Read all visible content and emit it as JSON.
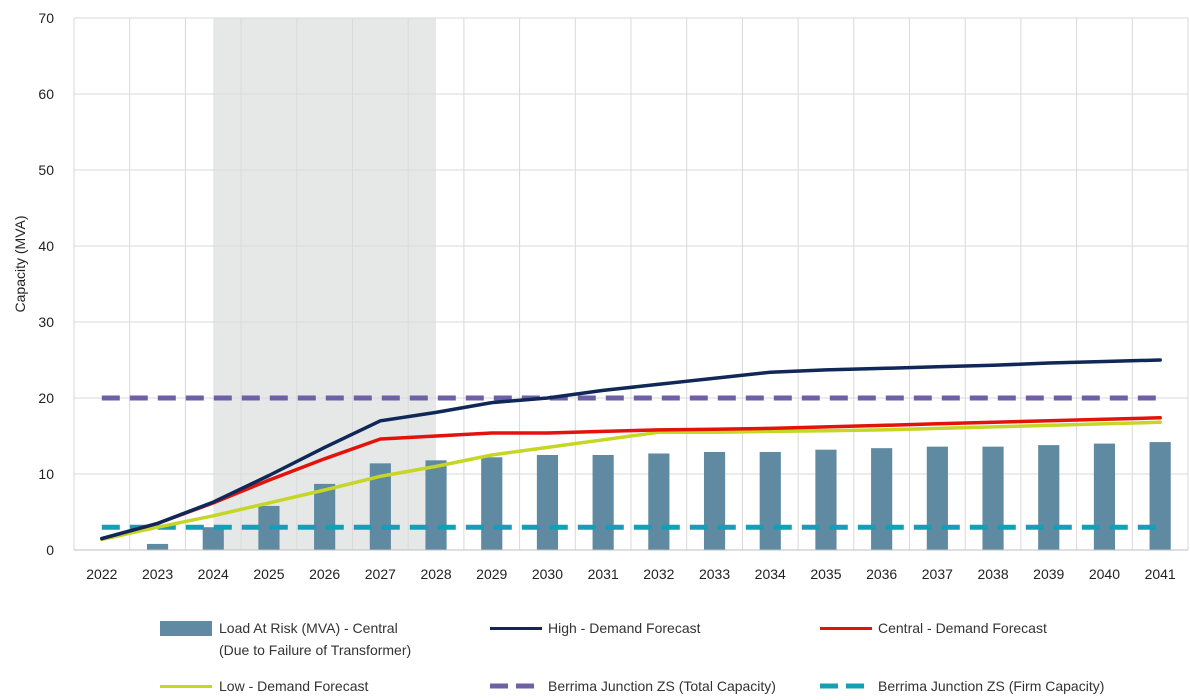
{
  "chart_data": {
    "type": "bar",
    "ylabel": "Capacity (MVA)",
    "xlabel": "",
    "title": "",
    "ylim": [
      0,
      70
    ],
    "yticks": [
      0,
      10,
      20,
      30,
      40,
      50,
      60,
      70
    ],
    "grid": true,
    "categories": [
      "2022",
      "2023",
      "2024",
      "2025",
      "2026",
      "2027",
      "2028",
      "2029",
      "2030",
      "2031",
      "2032",
      "2033",
      "2034",
      "2035",
      "2036",
      "2037",
      "2038",
      "2039",
      "2040",
      "2041"
    ],
    "shaded_region": {
      "from": "2024",
      "to": "2028",
      "color": "#e6e8e8"
    },
    "bar_series": {
      "name_line1": "Load At Risk (MVA) - Central",
      "name_line2": "(Due to Failure of Transformer)",
      "color": "#5f8aa1",
      "values": [
        0,
        0.8,
        3,
        5.8,
        8.7,
        11.4,
        11.8,
        12.2,
        12.5,
        12.5,
        12.7,
        12.9,
        12.9,
        13.2,
        13.4,
        13.6,
        13.6,
        13.8,
        14.0,
        14.2
      ]
    },
    "line_series": [
      {
        "name": "High - Demand Forecast",
        "color": "#0f2857",
        "style": "solid",
        "values": [
          1.5,
          3.5,
          6.3,
          9.8,
          13.5,
          17.0,
          18.1,
          19.4,
          20.0,
          21.0,
          21.8,
          22.6,
          23.4,
          23.7,
          23.9,
          24.1,
          24.3,
          24.6,
          24.8,
          25.0
        ]
      },
      {
        "name": "Central - Demand Forecast",
        "color": "#e3120b",
        "style": "solid",
        "values": [
          1.5,
          3.5,
          6.2,
          9.2,
          12.0,
          14.6,
          15.0,
          15.4,
          15.4,
          15.6,
          15.8,
          15.9,
          16.0,
          16.2,
          16.4,
          16.6,
          16.8,
          17.0,
          17.2,
          17.4
        ]
      },
      {
        "name": "Low  - Demand Forecast",
        "color": "#c5d624",
        "style": "solid",
        "values": [
          1.4,
          3.0,
          4.5,
          6.2,
          7.9,
          9.7,
          11.0,
          12.5,
          13.5,
          14.5,
          15.5,
          15.5,
          15.6,
          15.7,
          15.8,
          16.0,
          16.2,
          16.4,
          16.6,
          16.8
        ]
      },
      {
        "name": "Berrima Junction ZS (Total Capacity)",
        "color": "#6e5fa7",
        "style": "dashed",
        "values": [
          20,
          20,
          20,
          20,
          20,
          20,
          20,
          20,
          20,
          20,
          20,
          20,
          20,
          20,
          20,
          20,
          20,
          20,
          20,
          20
        ]
      },
      {
        "name": "Berrima Junction ZS (Firm Capacity)",
        "color": "#14a0b4",
        "style": "dashed",
        "values": [
          3,
          3,
          3,
          3,
          3,
          3,
          3,
          3,
          3,
          3,
          3,
          3,
          3,
          3,
          3,
          3,
          3,
          3,
          3,
          3
        ]
      }
    ],
    "legend_position": "bottom"
  }
}
